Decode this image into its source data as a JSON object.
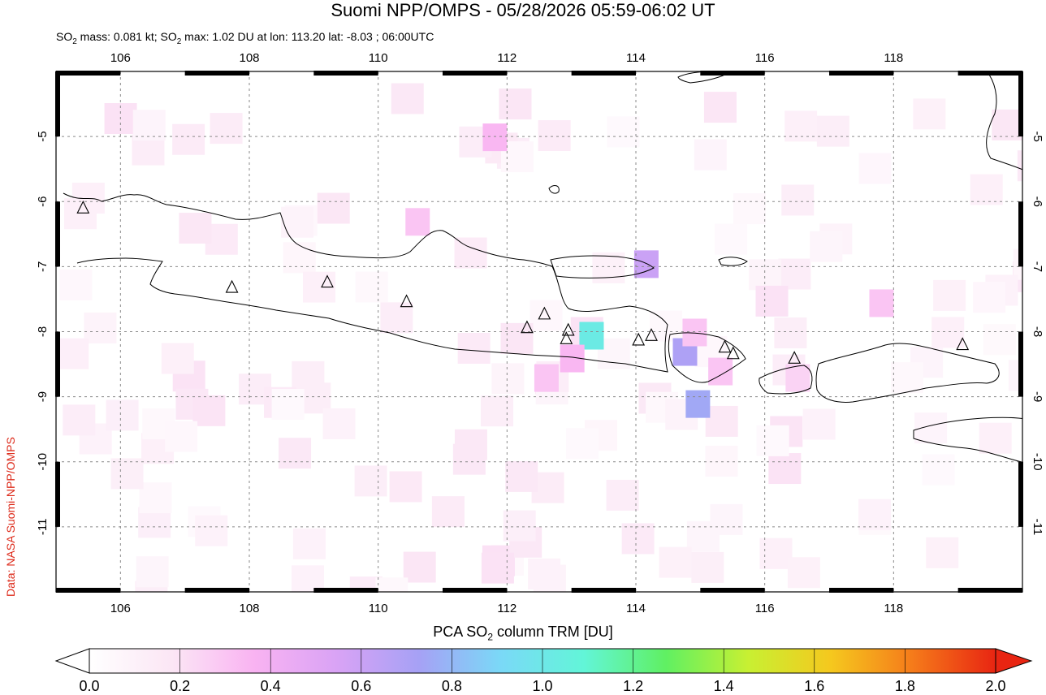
{
  "title": "Suomi NPP/OMPS - 05/28/2026 05:59-06:02 UT",
  "subtitle": {
    "mass_label": "SO",
    "mass_sub": "2",
    "mass_text": " mass: 0.081 kt; SO",
    "max_sub": "2",
    "max_text": " max: 1.02 DU at lon: 113.20 lat: -8.03 ; 06:00UTC"
  },
  "credit": "Data: NASA Suomi-NPP/OMPS",
  "colorbar": {
    "title_prefix": "PCA SO",
    "title_sub": "2",
    "title_suffix": " column TRM [DU]",
    "ticks": [
      "0.0",
      "0.2",
      "0.4",
      "0.6",
      "0.8",
      "1.0",
      "1.2",
      "1.4",
      "1.6",
      "1.8",
      "2.0"
    ],
    "colors": [
      "#ffffff",
      "#fbe6f5",
      "#f9b3f2",
      "#d9a3f5",
      "#a6a1f5",
      "#7ad9f7",
      "#62f5d8",
      "#60f062",
      "#c8f032",
      "#f5c81e",
      "#f57a1a",
      "#e82512"
    ]
  },
  "map": {
    "lon_ticks": [
      "106",
      "108",
      "110",
      "112",
      "114",
      "116",
      "118"
    ],
    "lat_ticks": [
      "-5",
      "-6",
      "-7",
      "-8",
      "-9",
      "-10",
      "-11"
    ],
    "lon_range": [
      105,
      120
    ],
    "lat_range": [
      -12,
      -4
    ],
    "volcanoes": [
      {
        "lon": 105.42,
        "lat": -6.1
      },
      {
        "lon": 107.73,
        "lat": -7.32
      },
      {
        "lon": 109.21,
        "lat": -7.24
      },
      {
        "lon": 110.44,
        "lat": -7.54
      },
      {
        "lon": 112.31,
        "lat": -7.94
      },
      {
        "lon": 112.58,
        "lat": -7.73
      },
      {
        "lon": 112.95,
        "lat": -7.98
      },
      {
        "lon": 112.92,
        "lat": -8.11
      },
      {
        "lon": 114.04,
        "lat": -8.13
      },
      {
        "lon": 114.24,
        "lat": -8.06
      },
      {
        "lon": 115.38,
        "lat": -8.24
      },
      {
        "lon": 115.51,
        "lat": -8.34
      },
      {
        "lon": 116.46,
        "lat": -8.41
      },
      {
        "lon": 119.07,
        "lat": -8.2
      }
    ],
    "so2_pixels": [
      {
        "lon": 113.3,
        "lat": -8.05,
        "du": 1.02
      },
      {
        "lon": 114.15,
        "lat": -6.95,
        "du": 0.6
      },
      {
        "lon": 114.75,
        "lat": -8.3,
        "du": 0.7
      },
      {
        "lon": 114.95,
        "lat": -9.1,
        "du": 0.75
      },
      {
        "lon": 113.0,
        "lat": -8.4,
        "du": 0.35
      },
      {
        "lon": 112.6,
        "lat": -8.7,
        "du": 0.3
      },
      {
        "lon": 111.8,
        "lat": -5.0,
        "du": 0.35
      },
      {
        "lon": 110.6,
        "lat": -6.3,
        "du": 0.3
      },
      {
        "lon": 114.9,
        "lat": -8.0,
        "du": 0.3
      },
      {
        "lon": 115.3,
        "lat": -8.6,
        "du": 0.3
      },
      {
        "lon": 117.8,
        "lat": -7.55,
        "du": 0.3
      },
      {
        "lon": 116.5,
        "lat": -8.7,
        "du": 0.25
      }
    ]
  }
}
